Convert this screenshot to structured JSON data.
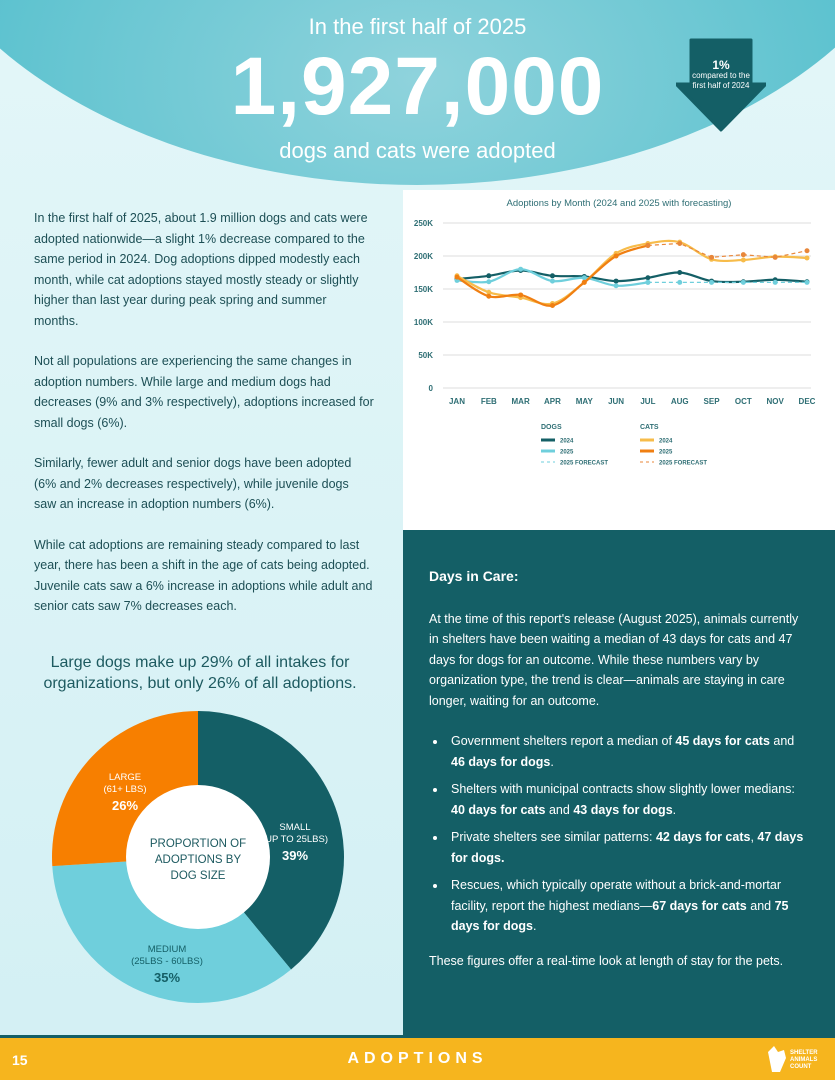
{
  "header": {
    "kicker": "In the first half of 2025",
    "total": "1,927,000",
    "caption": "dogs and cats were adopted",
    "change": {
      "value": "1%",
      "direction": "down",
      "text": "compared to the first half of 2024"
    }
  },
  "intro": [
    "In the first half of 2025, about 1.9 million dogs and cats were adopted nationwide—a slight 1% decrease compared to the same period in 2024. Dog adoptions dipped modestly each month, while cat adoptions stayed mostly steady or slightly higher than last year during peak spring and summer months.",
    "Not all populations are experiencing the same changes in adoption numbers. While large and medium dogs had decreases (9% and 3% respectively), adoptions increased for small dogs (6%).",
    "Similarly, fewer adult and senior dogs have been adopted (6% and 2% decreases respectively), while juvenile dogs saw an increase in adoption numbers (6%).",
    "While cat adoptions are remaining steady compared to last year, there has been a shift in the age of cats being adopted. Juvenile cats saw a 6% increase in adoptions while adult and senior cats saw 7% decreases each."
  ],
  "chart_data": [
    {
      "type": "line",
      "title": "Adoptions by Month (2024 and 2025 with forecasting)",
      "categories": [
        "JAN",
        "FEB",
        "MAR",
        "APR",
        "MAY",
        "JUN",
        "JUL",
        "AUG",
        "SEP",
        "OCT",
        "NOV",
        "DEC"
      ],
      "ylim": [
        0,
        250000
      ],
      "yticks": [
        "0",
        "50K",
        "100K",
        "150K",
        "200K",
        "250K"
      ],
      "grid": true,
      "legend": "bottom",
      "legend_groups": {
        "dogs": "DOGS",
        "cats": "CATS"
      },
      "series": [
        {
          "name": "2024",
          "group": "DOGS",
          "color": "#145f66",
          "dash": false,
          "values": [
            165000,
            170000,
            178000,
            170000,
            169000,
            162000,
            167000,
            175000,
            162000,
            161000,
            164000,
            161000
          ]
        },
        {
          "name": "2025",
          "group": "DOGS",
          "color": "#6fcfdc",
          "dash": false,
          "values": [
            163000,
            161000,
            180000,
            162000,
            167000,
            155000,
            160000,
            null,
            null,
            null,
            null,
            null
          ]
        },
        {
          "name": "2025 FORECAST",
          "group": "DOGS",
          "color": "#6fcfdc",
          "dash": true,
          "values": [
            null,
            null,
            null,
            null,
            null,
            null,
            160000,
            160000,
            160000,
            160000,
            160000,
            160000
          ]
        },
        {
          "name": "2024",
          "group": "CATS",
          "color": "#f7bc4a",
          "dash": false,
          "values": [
            170000,
            145000,
            137000,
            128000,
            160000,
            204000,
            219000,
            221000,
            195000,
            194000,
            199000,
            197000
          ]
        },
        {
          "name": "2025",
          "group": "CATS",
          "color": "#f07f12",
          "dash": false,
          "values": [
            168000,
            139000,
            141000,
            125000,
            160000,
            200000,
            216000,
            null,
            null,
            null,
            null,
            null
          ]
        },
        {
          "name": "2025 FORECAST",
          "group": "CATS",
          "color": "#e8873a",
          "dash": true,
          "values": [
            null,
            null,
            null,
            null,
            null,
            null,
            216000,
            219000,
            198000,
            202000,
            198000,
            208000
          ]
        }
      ]
    },
    {
      "type": "pie",
      "title": "Large dogs make up 29% of all intakes for organizations, but only 26% of all adoptions.",
      "center_label": "PROPORTION OF ADOPTIONS BY DOG SIZE",
      "slices": [
        {
          "label": "SMALL",
          "sub": "(UP TO 25LBS)",
          "value": 39,
          "pct": "39%",
          "color": "#145f66"
        },
        {
          "label": "MEDIUM",
          "sub": "(25LBS - 60LBS)",
          "value": 35,
          "pct": "35%",
          "color": "#6fcfdc"
        },
        {
          "label": "LARGE",
          "sub": "(61+ LBS)",
          "value": 26,
          "pct": "26%",
          "color": "#f77f00"
        }
      ]
    }
  ],
  "care": {
    "title": "Days in Care:",
    "intro": "At the time of this report's release (August 2025), animals currently in shelters have been waiting a median of 43 days for cats and 47 days for dogs for an outcome. While these numbers vary by organization type, the trend is clear—animals are staying in care longer, waiting for an outcome.",
    "bullets": [
      [
        "Government  shelters report a median of ",
        "45 days for cats",
        " and ",
        "46 days for dogs",
        "."
      ],
      [
        "Shelters with municipal contracts show slightly lower medians: ",
        "40 days for cats",
        " and ",
        "43 days for dogs",
        "."
      ],
      [
        "Private shelters see similar patterns: ",
        "42 days for cats",
        ", ",
        "47 days for dogs.",
        ""
      ],
      [
        "Rescues, which typically operate without a brick-and-mortar facility, report the highest medians—",
        "67 days for cats",
        " and ",
        "75 days for dogs",
        "."
      ]
    ],
    "outro": "These figures offer a real-time look at length of stay for the pets."
  },
  "footer": {
    "page": "15",
    "section": "ADOPTIONS",
    "logo": "SHELTER ANIMALS COUNT THE NATIONAL DATABASE"
  },
  "colors": {
    "teal": "#145f66",
    "light": "#6fcfdc",
    "orange": "#f77f00",
    "yellow": "#f6b51e"
  }
}
